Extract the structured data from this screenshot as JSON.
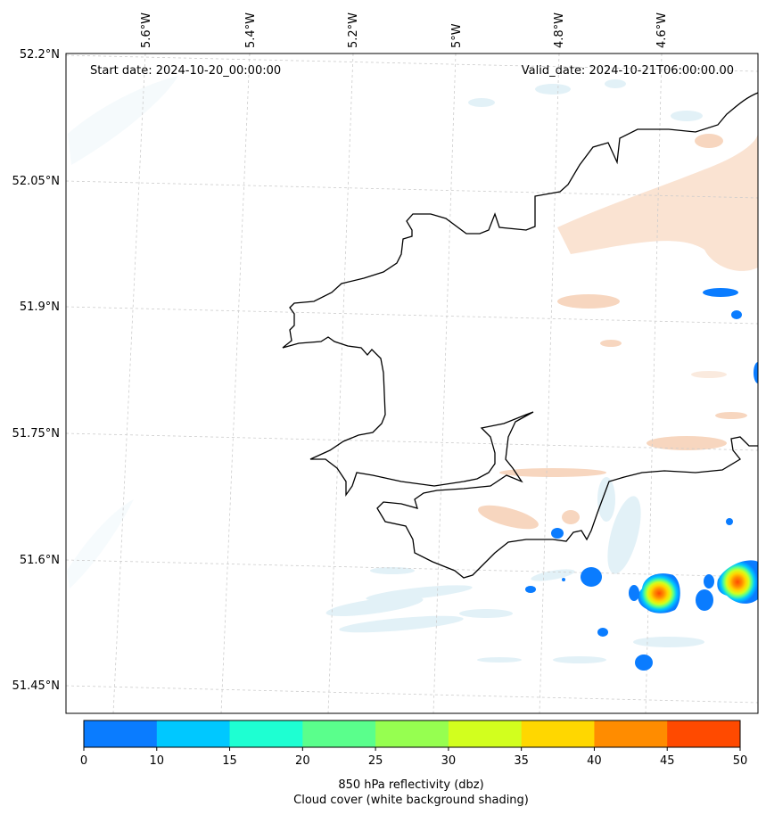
{
  "map": {
    "start_date": "Start date: 2024-10-20_00:00:00",
    "valid_date": "Valid_date: 2024-10-21T06:00:00.00",
    "lon_ticks": [
      "5.6°W",
      "5.4°W",
      "5.2°W",
      "5°W",
      "4.8°W",
      "4.6°W"
    ],
    "lat_ticks": [
      "52.2°N",
      "52.05°N",
      "51.9°N",
      "51.75°N",
      "51.6°N",
      "51.45°N"
    ],
    "extent": {
      "lon_min": -5.75,
      "lon_max": -4.4,
      "lat_min": 51.42,
      "lat_max": 52.2
    },
    "coastline_color": "#000000",
    "gridline_color": "#cccccc"
  },
  "colorbar": {
    "ticks": [
      "0",
      "10",
      "15",
      "20",
      "25",
      "30",
      "35",
      "40",
      "45",
      "50"
    ],
    "colors": [
      "#0a7cff",
      "#00c8ff",
      "#1effd2",
      "#5aff8c",
      "#96ff50",
      "#d2ff1e",
      "#ffd700",
      "#ff8c00",
      "#ff4a00"
    ],
    "label_line1": "850 hPa reflectivity (dbz)",
    "label_line2": "Cloud cover (white background shading)"
  },
  "features": {
    "cloud_shading_color": "#d8ecf4",
    "warm_shading_color": "#f6d2b8",
    "reflectivity_cells": [
      {
        "name": "cell-east",
        "max_dbz": 45
      },
      {
        "name": "cell-central",
        "max_dbz": 45
      },
      {
        "name": "cell-south",
        "max_dbz": 10
      }
    ]
  }
}
